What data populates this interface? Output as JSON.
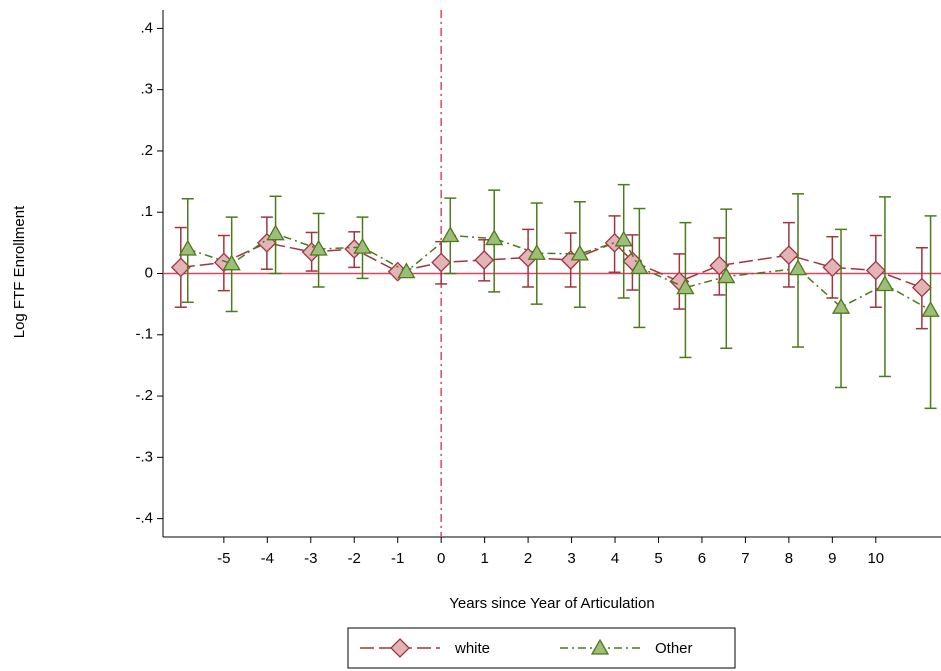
{
  "chart_data": {
    "type": "line",
    "xlabel": "Years since Year of Articulation",
    "ylabel": "Log FTF Enrollment",
    "xlim": [
      -6.4,
      11.5
    ],
    "ylim": [
      -0.43,
      0.43
    ],
    "xticks": [
      -5,
      -4,
      -3,
      -2,
      -1,
      0,
      1,
      2,
      3,
      4,
      5,
      6,
      7,
      8,
      9,
      10
    ],
    "yticks": [
      {
        "value": -0.4,
        "label": "-.4"
      },
      {
        "value": -0.3,
        "label": "-.3"
      },
      {
        "value": -0.2,
        "label": "-.2"
      },
      {
        "value": -0.1,
        "label": "-.1"
      },
      0,
      {
        "value": 0.1,
        "label": ".1"
      },
      {
        "value": 0.2,
        "label": ".2"
      },
      {
        "value": 0.3,
        "label": ".3"
      },
      {
        "value": 0.4,
        "label": ".4"
      }
    ],
    "vline": 0,
    "hline": 0,
    "series": [
      {
        "name": "white",
        "color": "#a0353f",
        "marker_fill": "#e2b4b7",
        "marker": "diamond",
        "x": [
          -5.99,
          -5.0,
          -4.01,
          -2.98,
          -2.0,
          -1.0,
          0,
          0.99,
          2.0,
          2.98,
          3.99,
          4.4,
          5.48,
          6.4,
          8.0,
          9.0,
          10.0,
          11.06
        ],
        "values": [
          0.01,
          0.018,
          0.05,
          0.035,
          0.04,
          0.003,
          0.018,
          0.022,
          0.026,
          0.022,
          0.05,
          0.02,
          -0.013,
          0.013,
          0.03,
          0.01,
          0.005,
          -0.023
        ],
        "lower": [
          -0.055,
          -0.028,
          0.007,
          0.004,
          0.01,
          null,
          -0.017,
          -0.012,
          -0.022,
          -0.022,
          0.002,
          -0.027,
          -0.058,
          -0.035,
          -0.022,
          -0.04,
          -0.055,
          -0.09
        ],
        "upper": [
          0.075,
          0.062,
          0.092,
          0.067,
          0.068,
          null,
          0.052,
          0.055,
          0.072,
          0.066,
          0.094,
          0.063,
          0.032,
          0.058,
          0.083,
          0.06,
          0.062,
          0.042
        ]
      },
      {
        "name": "Other",
        "color": "#4b7a1c",
        "marker_fill": "#9dbd78",
        "marker": "triangle",
        "x": [
          -5.83,
          -4.82,
          -3.81,
          -2.82,
          -1.81,
          -0.8,
          0.21,
          1.22,
          2.2,
          3.19,
          4.2,
          4.56,
          5.62,
          6.56,
          8.21,
          9.2,
          10.21,
          11.26
        ],
        "values": [
          0.04,
          0.016,
          0.065,
          0.04,
          0.043,
          0.003,
          0.062,
          0.057,
          0.033,
          0.032,
          0.055,
          0.01,
          -0.023,
          -0.005,
          0.008,
          -0.055,
          -0.018,
          -0.06
        ],
        "lower": [
          -0.047,
          -0.062,
          0.0,
          -0.022,
          -0.008,
          null,
          0.0,
          -0.03,
          -0.05,
          -0.055,
          -0.04,
          -0.088,
          -0.137,
          -0.122,
          -0.12,
          -0.186,
          -0.168,
          -0.22
        ],
        "upper": [
          0.122,
          0.092,
          0.126,
          0.098,
          0.092,
          null,
          0.123,
          0.136,
          0.115,
          0.117,
          0.145,
          0.106,
          0.083,
          0.105,
          0.13,
          0.072,
          0.125,
          0.094
        ]
      }
    ]
  }
}
